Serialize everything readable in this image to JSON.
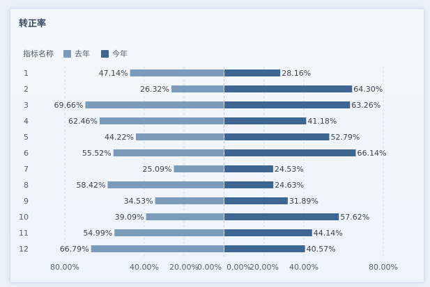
{
  "panel": {
    "title": "转正率"
  },
  "legend": {
    "label": "指标名称",
    "items": [
      {
        "name": "去年",
        "color": "#7c9aba"
      },
      {
        "name": "今年",
        "color": "#3f6690"
      }
    ]
  },
  "chart_data": {
    "type": "bar",
    "orientation": "horizontal-butterfly",
    "categories": [
      "1",
      "2",
      "3",
      "4",
      "5",
      "6",
      "7",
      "8",
      "9",
      "10",
      "11",
      "12"
    ],
    "series": [
      {
        "name": "去年",
        "side": "left",
        "color": "#7c9aba",
        "values": [
          47.14,
          26.32,
          69.66,
          62.46,
          44.22,
          55.52,
          25.09,
          58.42,
          34.53,
          39.09,
          54.99,
          66.79
        ],
        "labels": [
          "47.14%",
          "26.32%",
          "69.66%",
          "62.46%",
          "44.22%",
          "55.52%",
          "25.09%",
          "58.42%",
          "34.53%",
          "39.09%",
          "54.99%",
          "66.79%"
        ]
      },
      {
        "name": "今年",
        "side": "right",
        "color": "#3f6690",
        "values": [
          28.16,
          64.3,
          63.26,
          41.18,
          52.79,
          66.14,
          24.53,
          24.63,
          31.89,
          57.62,
          44.14,
          40.57
        ],
        "labels": [
          "28.16%",
          "64.30%",
          "63.26%",
          "41.18%",
          "52.79%",
          "66.14%",
          "24.53%",
          "24.63%",
          "31.89%",
          "57.62%",
          "44.14%",
          "40.57%"
        ]
      }
    ],
    "left_axis": {
      "ticks": [
        "80.00%",
        "40.00%",
        "20.00%",
        "0.00%"
      ],
      "tick_values": [
        80,
        40,
        20,
        0
      ]
    },
    "right_axis": {
      "ticks": [
        "0.00%",
        "20.00%",
        "40.00%",
        "80.00%"
      ],
      "tick_values": [
        0,
        20,
        40,
        80
      ]
    },
    "xlim": [
      0,
      80
    ],
    "grid": true
  }
}
